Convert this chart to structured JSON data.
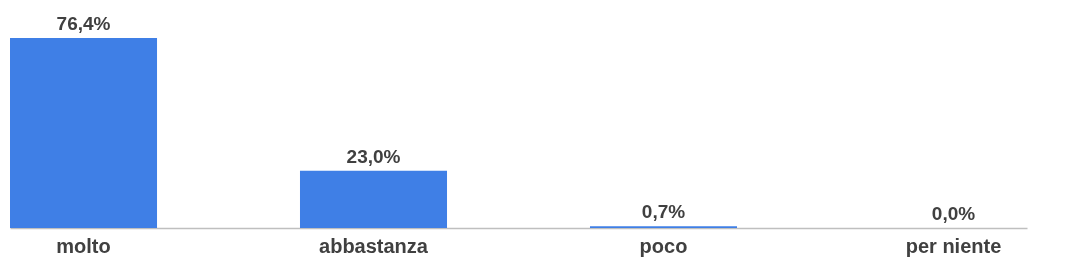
{
  "chart_data": {
    "type": "bar",
    "categories": [
      "molto",
      "abbastanza",
      "poco",
      "per niente"
    ],
    "values": [
      76.4,
      23.0,
      0.7,
      0.0
    ],
    "value_labels": [
      "76,4%",
      "23,0%",
      "0,7%",
      "0,0%"
    ],
    "color": "#3f7fe6"
  }
}
